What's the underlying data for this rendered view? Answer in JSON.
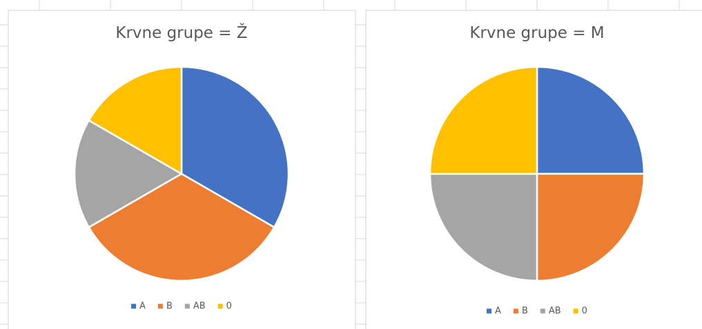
{
  "chart_data": [
    {
      "type": "pie",
      "title": "Krvne grupe = Ž",
      "categories": [
        "A",
        "B",
        "AB",
        "0"
      ],
      "values": [
        2,
        2,
        1,
        1
      ],
      "colors": [
        "#4472c4",
        "#ed7d31",
        "#a5a5a5",
        "#ffc000"
      ],
      "legend": "bottom"
    },
    {
      "type": "pie",
      "title": "Krvne grupe = M",
      "categories": [
        "A",
        "B",
        "AB",
        "0"
      ],
      "values": [
        1,
        1,
        1,
        1
      ],
      "colors": [
        "#4472c4",
        "#ed7d31",
        "#a5a5a5",
        "#ffc000"
      ],
      "legend": "bottom"
    }
  ]
}
